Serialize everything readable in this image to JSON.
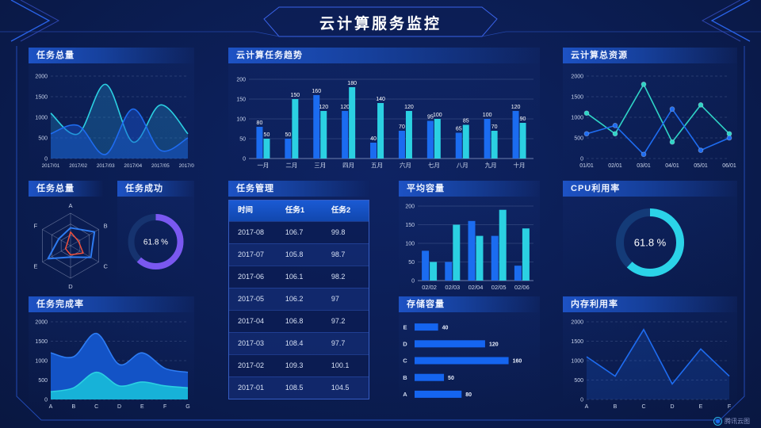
{
  "header": {
    "title": "云计算服务监控"
  },
  "watermark": {
    "label": "腾讯云图"
  },
  "panels": {
    "tasks_total_top": {
      "title": "任务总量"
    },
    "trend": {
      "title": "云计算任务趋势"
    },
    "resources": {
      "title": "云计算总资源"
    },
    "radar": {
      "title": "任务总量"
    },
    "task_success": {
      "title": "任务成功",
      "value": "61.8 %"
    },
    "task_table": {
      "title": "任务管理"
    },
    "avg_capacity": {
      "title": "平均容量"
    },
    "cpu": {
      "title": "CPU利用率",
      "value": "61.8 %"
    },
    "completion": {
      "title": "任务完成率"
    },
    "storage": {
      "title": "存储容量"
    },
    "memory": {
      "title": "内存利用率"
    }
  },
  "table": {
    "columns": [
      "时间",
      "任务1",
      "任务2"
    ],
    "rows": [
      [
        "2017-08",
        "106.7",
        "99.8"
      ],
      [
        "2017-07",
        "105.8",
        "98.7"
      ],
      [
        "2017-06",
        "106.1",
        "98.2"
      ],
      [
        "2017-05",
        "106.2",
        "97"
      ],
      [
        "2017-04",
        "106.8",
        "97.2"
      ],
      [
        "2017-03",
        "108.4",
        "97.7"
      ],
      [
        "2017-02",
        "109.3",
        "100.1"
      ],
      [
        "2017-01",
        "108.5",
        "104.5"
      ]
    ]
  },
  "colors": {
    "blue": "#1b6cf0",
    "cyan": "#2bd0e2",
    "teal": "#2fd4c6",
    "purple": "#7a58f0",
    "red": "#f0503c",
    "gauge_track": "#16336f",
    "frame": "#2753c8"
  },
  "chart_data": [
    {
      "id": "tasks_total_top",
      "type": "area",
      "smooth": true,
      "grid": "dashed",
      "title": "任务总量",
      "x": [
        "2017/01",
        "2017/02",
        "2017/03",
        "2017/04",
        "2017/05",
        "2017/06"
      ],
      "ylim": [
        0,
        2000
      ],
      "yticks": [
        0,
        500,
        1000,
        1500,
        2000
      ],
      "series": [
        {
          "name": "cyan",
          "color": "#2bd0e2",
          "fill": "rgba(35,150,205,0.30)",
          "values": [
            1100,
            600,
            1800,
            400,
            1300,
            600
          ]
        },
        {
          "name": "blue",
          "color": "#1e6cf0",
          "fill": "rgba(25,85,210,0.45)",
          "values": [
            600,
            800,
            100,
            1200,
            200,
            500
          ]
        }
      ]
    },
    {
      "id": "trend",
      "type": "bar",
      "grid": "solid",
      "show_labels": true,
      "title": "云计算任务趋势",
      "categories": [
        "一月",
        "二月",
        "三月",
        "四月",
        "五月",
        "六月",
        "七月",
        "八月",
        "九月",
        "十月"
      ],
      "ylim": [
        0,
        200
      ],
      "yticks": [
        0,
        50,
        100,
        150,
        200
      ],
      "series": [
        {
          "name": "blue",
          "color": "#1b6cf0",
          "values": [
            80,
            50,
            160,
            120,
            40,
            70,
            95,
            65,
            100,
            120
          ]
        },
        {
          "name": "cyan",
          "color": "#2bd0e2",
          "values": [
            50,
            150,
            120,
            180,
            140,
            120,
            100,
            85,
            70,
            90
          ]
        }
      ]
    },
    {
      "id": "resources",
      "type": "line",
      "markers": true,
      "grid": "dashed",
      "title": "云计算总资源",
      "x": [
        "01/01",
        "02/01",
        "03/01",
        "04/01",
        "05/01",
        "06/01"
      ],
      "ylim": [
        0,
        2000
      ],
      "yticks": [
        0,
        500,
        1000,
        1500,
        2000
      ],
      "series": [
        {
          "name": "teal",
          "color": "#2fd4c6",
          "values": [
            1100,
            600,
            1800,
            400,
            1300,
            600
          ]
        },
        {
          "name": "blue",
          "color": "#1e6cf0",
          "values": [
            600,
            800,
            100,
            1200,
            200,
            500
          ]
        }
      ]
    },
    {
      "id": "radar",
      "type": "radar",
      "title": "任务总量",
      "axes": [
        "A",
        "B",
        "C",
        "D",
        "E",
        "F"
      ],
      "max": 1,
      "series": [
        {
          "name": "blue",
          "color": "#2e7bf0",
          "width": 2,
          "values": [
            0.55,
            0.85,
            0.72,
            0.35,
            0.8,
            0.42
          ]
        },
        {
          "name": "red",
          "color": "#f0503c",
          "width": 1.5,
          "values": [
            0.42,
            0.28,
            0.45,
            0.28,
            0.18,
            0.12
          ]
        }
      ]
    },
    {
      "id": "task_success",
      "type": "donut",
      "title": "任务成功",
      "percent": 61.8,
      "label": "61.8 %",
      "color": "#7a58f0",
      "track": "#16336f"
    },
    {
      "id": "avg_capacity",
      "type": "bar",
      "grid": "solid",
      "show_labels": false,
      "title": "平均容量",
      "categories": [
        "02/02",
        "02/03",
        "02/04",
        "02/05",
        "02/06"
      ],
      "ylim": [
        0,
        200
      ],
      "yticks": [
        0,
        50,
        100,
        150,
        200
      ],
      "series": [
        {
          "name": "blue",
          "color": "#1b6cf0",
          "values": [
            80,
            50,
            160,
            120,
            40
          ]
        },
        {
          "name": "cyan",
          "color": "#2bd0e2",
          "values": [
            50,
            150,
            120,
            190,
            140
          ]
        }
      ]
    },
    {
      "id": "cpu",
      "type": "donut",
      "title": "CPU利用率",
      "percent": 61.8,
      "label": "61.8 %",
      "color": "#2bd3e8",
      "track": "#143b78"
    },
    {
      "id": "completion",
      "type": "area",
      "smooth": true,
      "grid": "dashed",
      "title": "任务完成率",
      "x": [
        "A",
        "B",
        "C",
        "D",
        "E",
        "F",
        "G"
      ],
      "ylim": [
        0,
        2000
      ],
      "yticks": [
        0,
        500,
        1000,
        1500,
        2000
      ],
      "series": [
        {
          "name": "blue",
          "color": "#2e7df5",
          "fill": "#1353c6",
          "values": [
            1200,
            1100,
            1700,
            900,
            1200,
            800,
            700
          ]
        },
        {
          "name": "cyan",
          "color": "#2bd0e2",
          "fill": "#17b2d8",
          "values": [
            200,
            300,
            700,
            350,
            450,
            350,
            300
          ]
        }
      ]
    },
    {
      "id": "storage",
      "type": "hbar",
      "title": "存储容量",
      "color": "#1565f0",
      "xmax": 170,
      "rows": [
        {
          "label": "E",
          "value": 40
        },
        {
          "label": "D",
          "value": 120
        },
        {
          "label": "C",
          "value": 160
        },
        {
          "label": "B",
          "value": 50
        },
        {
          "label": "A",
          "value": 80
        }
      ]
    },
    {
      "id": "memory",
      "type": "line",
      "markers": false,
      "grid": "dashed",
      "title": "内存利用率",
      "x": [
        "A",
        "B",
        "C",
        "D",
        "E",
        "F"
      ],
      "ylim": [
        0,
        2000
      ],
      "yticks": [
        0,
        500,
        1000,
        1500,
        2000
      ],
      "series": [
        {
          "name": "blue",
          "color": "#1e6cf0",
          "fill": "rgba(30,100,230,0.20)",
          "values": [
            1100,
            600,
            1800,
            400,
            1300,
            600
          ]
        }
      ]
    }
  ]
}
